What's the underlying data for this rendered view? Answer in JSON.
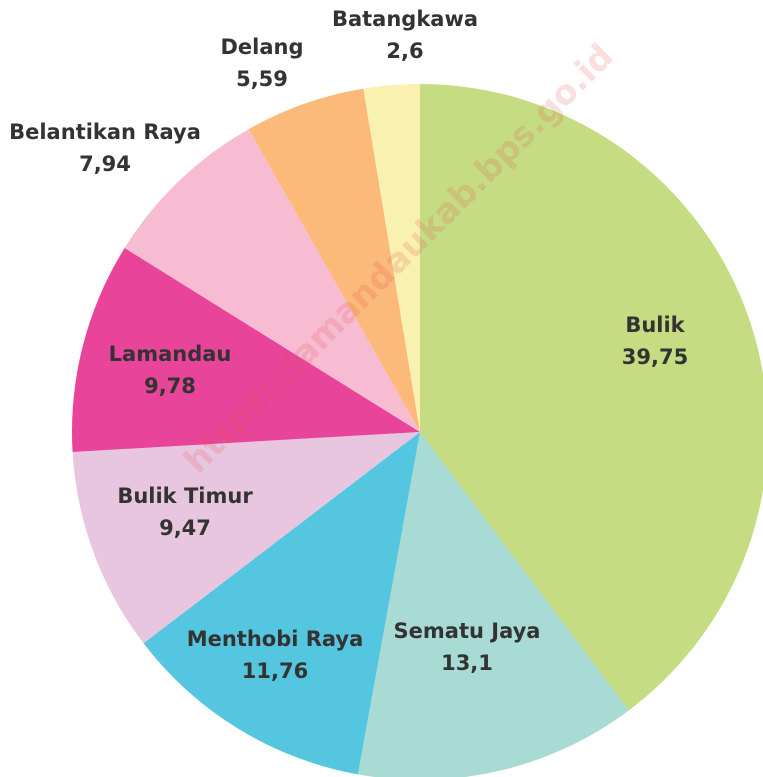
{
  "chart_data": {
    "type": "pie",
    "categories": [
      "Bulik",
      "Sematu Jaya",
      "Menthobi Raya",
      "Bulik Timur",
      "Lamandau",
      "Belantikan Raya",
      "Delang",
      "Batangkawa"
    ],
    "values": [
      39.75,
      13.1,
      11.76,
      9.47,
      9.78,
      7.94,
      5.59,
      2.6
    ],
    "value_labels": [
      "39,75",
      "13,1",
      "11,76",
      "9,47",
      "9,78",
      "7,94",
      "5,59",
      "2,6"
    ],
    "colors": [
      "#c5dc82",
      "#a8dbd3",
      "#55c6e0",
      "#e8c6df",
      "#e8449a",
      "#f7bcd1",
      "#fbb97a",
      "#f9f1b0"
    ],
    "watermark": "https://lamandaukab.bps.go.id"
  }
}
